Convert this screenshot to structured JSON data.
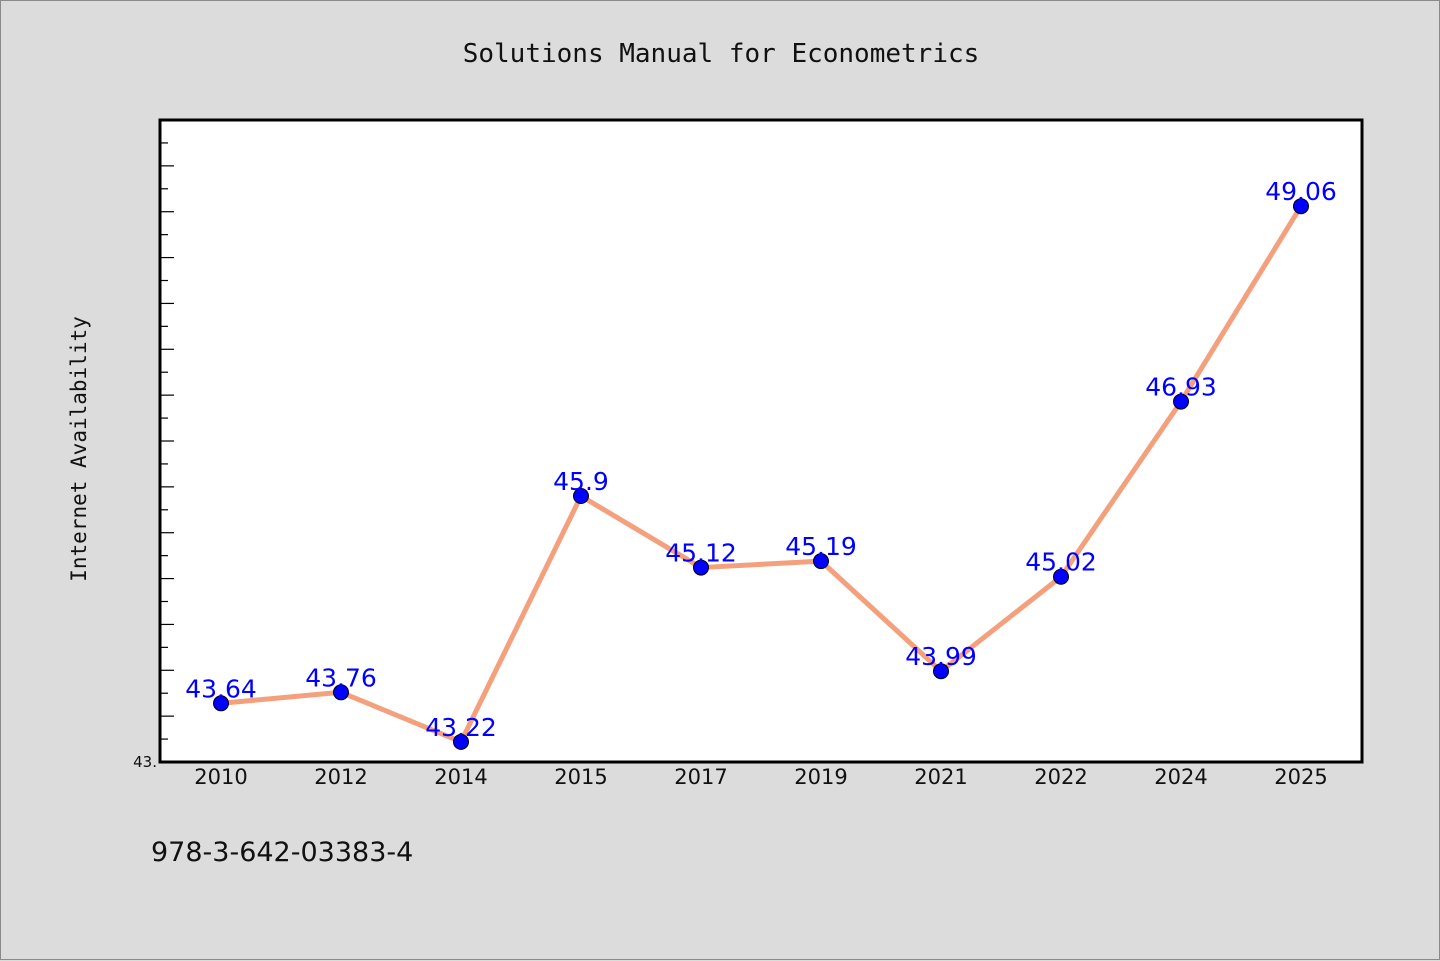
{
  "footer": {
    "isbn": "978-3-642-03383-4"
  },
  "chart_data": {
    "type": "line",
    "title": "Solutions Manual for Econometrics",
    "xlabel": "",
    "ylabel": "Internet Availability",
    "categories": [
      "2010",
      "2012",
      "2014",
      "2015",
      "2017",
      "2019",
      "2021",
      "2022",
      "2024",
      "2025"
    ],
    "series": [
      {
        "values": [
          43.64,
          43.76,
          43.22,
          45.9,
          45.12,
          45.19,
          43.99,
          45.02,
          46.93,
          49.06
        ],
        "labels": [
          "43.64",
          "43.76",
          "43.22",
          "45.9",
          "45.12",
          "45.19",
          "43.99",
          "45.02",
          "46.93",
          "49.06"
        ],
        "line_color": "#f5a07d",
        "marker_color": "#0000ff"
      }
    ],
    "ylim": [
      43.0,
      50.0
    ],
    "y_tick_labels": [
      "43."
    ],
    "grid": false,
    "legend": "none"
  }
}
